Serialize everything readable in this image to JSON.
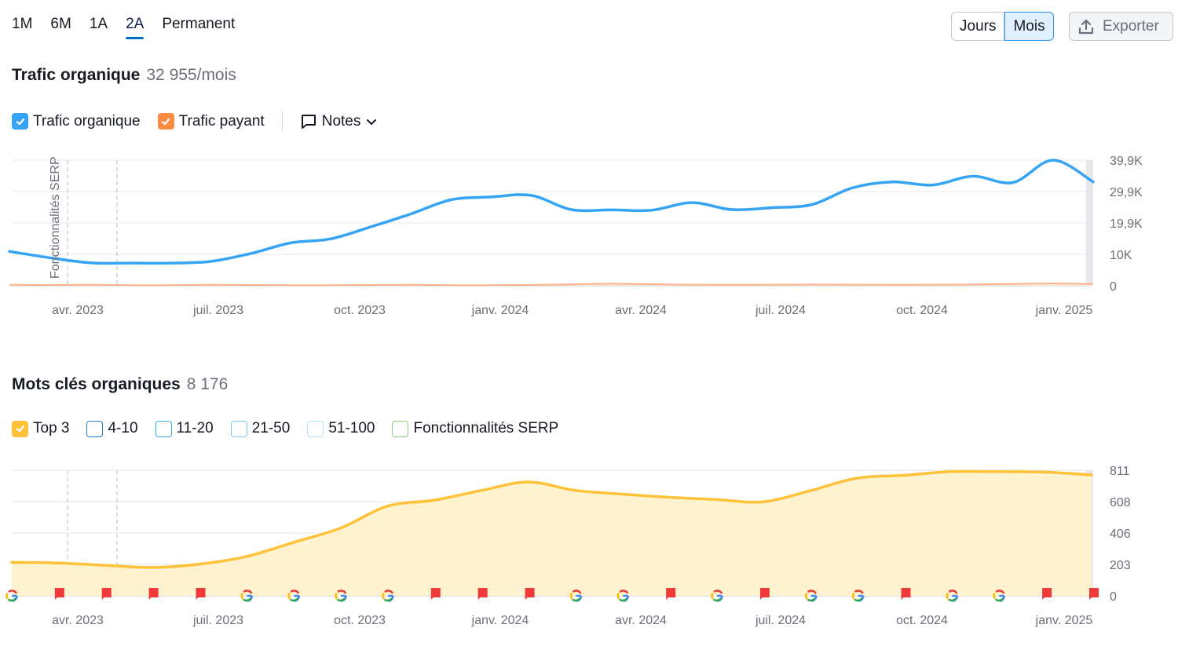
{
  "range_tabs": [
    "1M",
    "6M",
    "1A",
    "2A",
    "Permanent"
  ],
  "active_range": "2A",
  "granularity": {
    "days": "Jours",
    "months": "Mois",
    "selected": "Mois"
  },
  "export_label": "Exporter",
  "traffic": {
    "title": "Trafic organique",
    "value": "32 955/mois",
    "legend": [
      {
        "label": "Trafic organique",
        "color": "#35a4f4",
        "checked": true
      },
      {
        "label": "Trafic payant",
        "color": "#ff8c43",
        "checked": true
      }
    ],
    "notes_label": "Notes",
    "annotation": "Fonctionnalités SERP"
  },
  "keywords": {
    "title": "Mots clés organiques",
    "value": "8 176",
    "legend": [
      {
        "label": "Top 3",
        "color": "#ffcc47",
        "checked": true
      },
      {
        "label": "4-10",
        "color": "#2b7bbf",
        "checked": false
      },
      {
        "label": "11-20",
        "color": "#35a4f4",
        "checked": false
      },
      {
        "label": "21-50",
        "color": "#74c6f8",
        "checked": false
      },
      {
        "label": "51-100",
        "color": "#b7e2fb",
        "checked": false
      },
      {
        "label": "Fonctionnalités SERP",
        "color": "#8bd07c",
        "checked": false
      }
    ]
  },
  "chart_data": [
    {
      "type": "line",
      "title": "Trafic organique",
      "x_labels": [
        "avr. 2023",
        "juil. 2023",
        "oct. 2023",
        "janv. 2024",
        "avr. 2024",
        "juil. 2024",
        "oct. 2024",
        "janv. 2025"
      ],
      "y_ticks": [
        "0",
        "10K",
        "19,9K",
        "29,9K",
        "39,9K"
      ],
      "ylim": [
        0,
        39900
      ],
      "colors": {
        "organic": "#35a4f4",
        "paid": "#ffb38a"
      },
      "series": [
        {
          "name": "Trafic organique",
          "values": [
            10900,
            8900,
            7300,
            7200,
            7200,
            7700,
            10200,
            13600,
            14900,
            18700,
            22800,
            27300,
            28200,
            28700,
            24200,
            24100,
            24000,
            26400,
            24200,
            24800,
            25800,
            31100,
            33000,
            32000,
            34800,
            32800,
            39900,
            33000
          ]
        },
        {
          "name": "Trafic payant",
          "values": [
            300,
            250,
            300,
            200,
            200,
            300,
            250,
            200,
            200,
            250,
            300,
            200,
            200,
            250,
            450,
            650,
            500,
            350,
            300,
            350,
            400,
            350,
            300,
            350,
            400,
            600,
            750,
            550
          ]
        }
      ]
    },
    {
      "type": "area",
      "title": "Mots clés organiques",
      "x_labels": [
        "avr. 2023",
        "juil. 2023",
        "oct. 2023",
        "janv. 2024",
        "avr. 2024",
        "juil. 2024",
        "oct. 2024",
        "janv. 2025"
      ],
      "y_ticks": [
        "0",
        "203",
        "406",
        "608",
        "811"
      ],
      "ylim": [
        0,
        811
      ],
      "color": "#ffc239",
      "series": [
        {
          "name": "Top 3",
          "values": [
            217,
            212,
            197,
            183,
            205,
            254,
            345,
            437,
            579,
            618,
            680,
            735,
            681,
            657,
            636,
            622,
            607,
            678,
            760,
            778,
            802,
            802,
            799,
            781
          ]
        }
      ],
      "event_markers": [
        "google",
        "flag",
        "flag",
        "flag",
        "flag",
        "google",
        "google",
        "google",
        "google",
        "flag",
        "flag",
        "flag",
        "google",
        "google",
        "flag",
        "google",
        "flag",
        "google",
        "google",
        "flag",
        "google",
        "google",
        "flag",
        "flag"
      ]
    }
  ]
}
